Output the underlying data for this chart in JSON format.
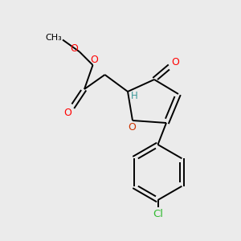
{
  "bg_color": "#ebebeb",
  "bond_color": "#000000",
  "bond_width": 1.4,
  "fig_size": [
    3.0,
    3.0
  ],
  "dpi": 100,
  "atoms": {
    "O_red": "#ff0000",
    "O_furan": "#cc3300",
    "Cl": "#33bb33",
    "H": "#3a9898",
    "C": "#000000"
  },
  "xlim": [
    0,
    10
  ],
  "ylim": [
    0,
    10
  ]
}
